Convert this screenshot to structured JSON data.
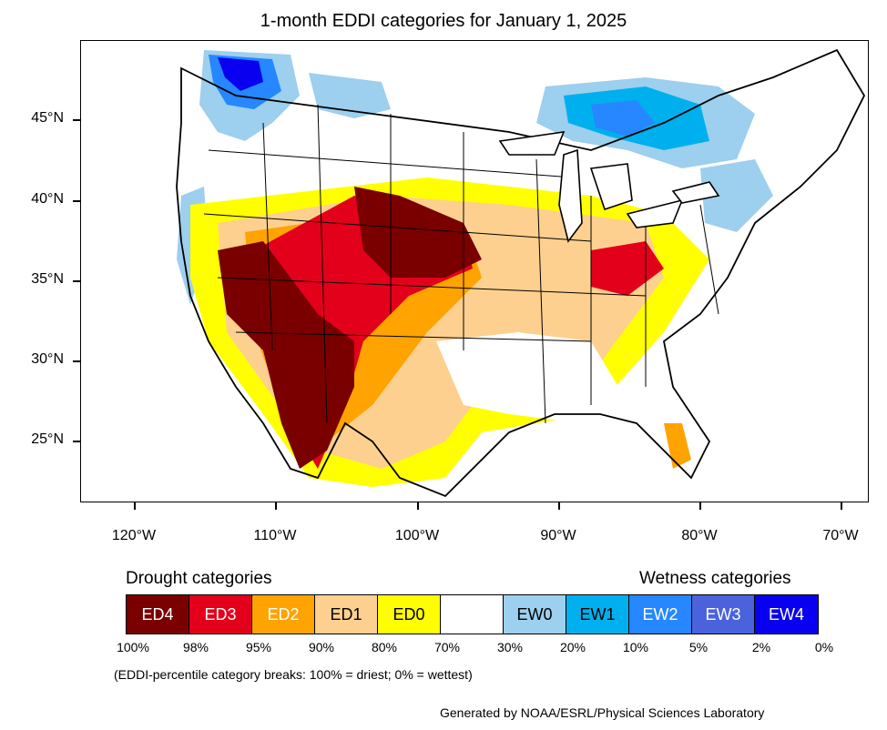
{
  "title": "1-month EDDI categories for January 1, 2025",
  "lat_labels": [
    "45°N",
    "40°N",
    "35°N",
    "30°N",
    "25°N"
  ],
  "lon_labels": [
    "120°W",
    "110°W",
    "100°W",
    "90°W",
    "80°W",
    "70°W"
  ],
  "legend": {
    "drought_heading": "Drought categories",
    "wetness_heading": "Wetness categories",
    "categories": [
      {
        "label": "ED4",
        "color": "#7a0000",
        "text_color": "#ffffff"
      },
      {
        "label": "ED3",
        "color": "#e3001b",
        "text_color": "#ffffff"
      },
      {
        "label": "ED2",
        "color": "#ffa300",
        "text_color": "#ffffff"
      },
      {
        "label": "ED1",
        "color": "#fdd08f",
        "text_color": "#000000"
      },
      {
        "label": "ED0",
        "color": "#ffff00",
        "text_color": "#000000"
      },
      {
        "label": "",
        "color": "#ffffff",
        "text_color": "#000000"
      },
      {
        "label": "EW0",
        "color": "#9dcfee",
        "text_color": "#000000"
      },
      {
        "label": "EW1",
        "color": "#00b0ee",
        "text_color": "#000000"
      },
      {
        "label": "EW2",
        "color": "#2687ff",
        "text_color": "#ffffff"
      },
      {
        "label": "EW3",
        "color": "#4a63dc",
        "text_color": "#ffffff"
      },
      {
        "label": "EW4",
        "color": "#0a00f0",
        "text_color": "#ffffff"
      }
    ],
    "breaks": [
      "100%",
      "98%",
      "95%",
      "90%",
      "80%",
      "70%",
      "30%",
      "20%",
      "10%",
      "5%",
      "2%",
      "0%"
    ]
  },
  "note": "(EDDI-percentile category breaks: 100% = driest; 0% = wettest)",
  "credit": "Generated by NOAA/ESRL/Physical Sciences Laboratory"
}
